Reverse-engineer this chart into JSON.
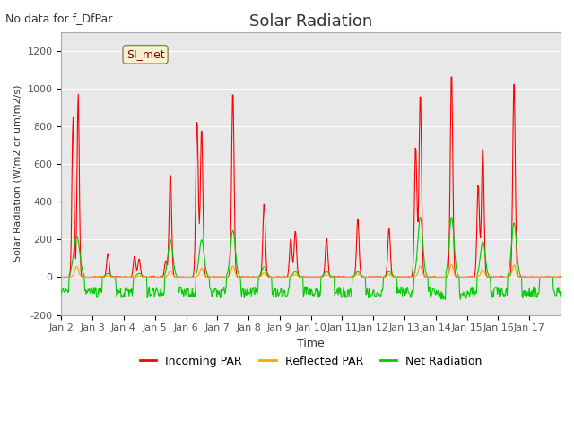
{
  "title": "Solar Radiation",
  "subtitle": "No data for f_DfPar",
  "xlabel": "Time",
  "ylabel": "Solar Radiation (W/m2 or um/m2/s)",
  "ylim": [
    -200,
    1300
  ],
  "yticks": [
    -200,
    0,
    200,
    400,
    600,
    800,
    1000,
    1200
  ],
  "xtick_labels": [
    "Jan 2",
    "Jan 3",
    "Jan 4",
    "Jan 5",
    "Jan 6",
    "Jan 7",
    "Jan 8",
    "Jan 9",
    "Jan 10",
    "Jan 11",
    "Jan 12",
    "Jan 13",
    "Jan 14",
    "Jan 15",
    "Jan 16",
    "Jan 17"
  ],
  "legend_label": "SI_met",
  "bg_color": "#e8e8e8",
  "grid_color": "#ffffff",
  "line_incoming": "#ff0000",
  "line_reflected": "#ffa500",
  "line_net": "#00cc00",
  "n_points_per_day": 48,
  "n_days": 16
}
